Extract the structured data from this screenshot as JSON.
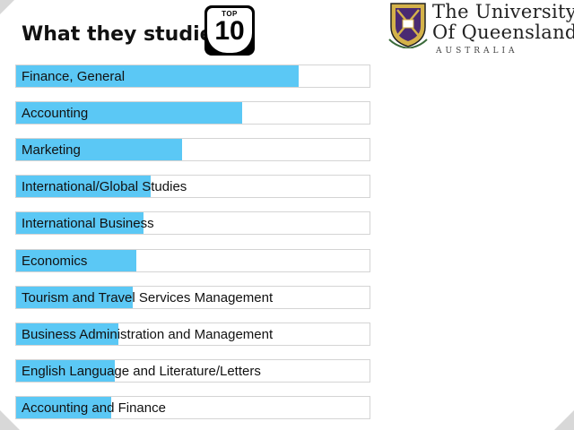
{
  "header": {
    "title": "What they studied",
    "badge_small": "TOP",
    "badge_big": "10"
  },
  "logo": {
    "line1": "The University",
    "line2": "Of Queensland",
    "country": "AUSTRALIA"
  },
  "colors": {
    "bar": "#5bc8f5",
    "crest_gold": "#d4b24a",
    "crest_purple": "#4a2a72"
  },
  "chart_data": {
    "type": "bar",
    "orientation": "horizontal",
    "title": "What they studied",
    "categories": [
      "Finance, General",
      "Accounting",
      "Marketing",
      "International/Global Studies",
      "International Business",
      "Economics",
      "Tourism and Travel Services Management",
      "Business Administration and Management",
      "English Language and Literature/Letters",
      "Accounting and Finance"
    ],
    "values": [
      80,
      64,
      47,
      38,
      36,
      34,
      33,
      29,
      28,
      27
    ],
    "xlim": [
      0,
      100
    ],
    "grid": false,
    "legend": "none"
  }
}
